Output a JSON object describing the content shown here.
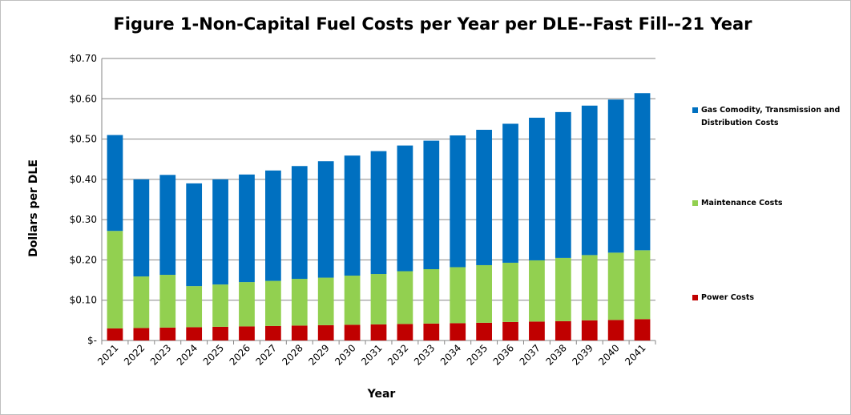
{
  "chart_data": {
    "type": "bar",
    "stacked": true,
    "title": "Figure 1-Non-Capital Fuel Costs per Year per DLE--Fast Fill--21 Year",
    "xlabel": "Year",
    "ylabel": "Dollars per DLE",
    "ylim": [
      0,
      0.7
    ],
    "yticks": [
      "$-",
      "$0.10",
      "$0.20",
      "$0.30",
      "$0.40",
      "$0.50",
      "$0.60",
      "$0.70"
    ],
    "grid": true,
    "legend_position": "right",
    "categories": [
      "2021",
      "2022",
      "2023",
      "2024",
      "2025",
      "2026",
      "2027",
      "2028",
      "2029",
      "2030",
      "2031",
      "2032",
      "2033",
      "2034",
      "2035",
      "2036",
      "2037",
      "2038",
      "2039",
      "2040",
      "2041"
    ],
    "series": [
      {
        "name": "Power Costs",
        "color": "#c00000",
        "values": [
          0.03,
          0.031,
          0.032,
          0.033,
          0.034,
          0.035,
          0.036,
          0.037,
          0.038,
          0.039,
          0.04,
          0.041,
          0.042,
          0.043,
          0.044,
          0.046,
          0.047,
          0.048,
          0.05,
          0.051,
          0.053
        ]
      },
      {
        "name": "Maintenance Costs",
        "color": "#92d050",
        "values": [
          0.242,
          0.128,
          0.131,
          0.102,
          0.105,
          0.11,
          0.112,
          0.116,
          0.118,
          0.122,
          0.125,
          0.131,
          0.135,
          0.139,
          0.143,
          0.147,
          0.152,
          0.157,
          0.162,
          0.167,
          0.171
        ]
      },
      {
        "name": "Gas Comodity, Transmission and Distribution Costs",
        "color": "#0070c0",
        "values": [
          0.238,
          0.241,
          0.248,
          0.255,
          0.261,
          0.267,
          0.274,
          0.28,
          0.289,
          0.298,
          0.305,
          0.312,
          0.319,
          0.327,
          0.336,
          0.345,
          0.354,
          0.362,
          0.371,
          0.38,
          0.39
        ]
      }
    ]
  }
}
